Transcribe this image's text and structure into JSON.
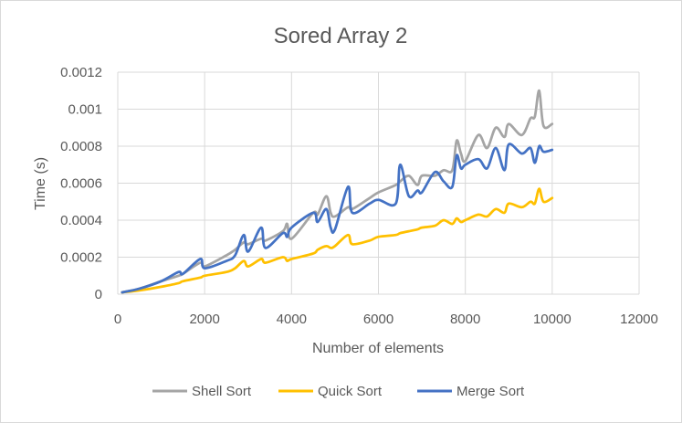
{
  "chart_data": {
    "type": "line",
    "title": "Sored Array 2",
    "xlabel": "Number of elements",
    "ylabel": "Time (s)",
    "xlim": [
      0,
      12000
    ],
    "ylim": [
      0,
      0.0012
    ],
    "x_ticks": [
      "0",
      "2000",
      "4000",
      "6000",
      "8000",
      "10000",
      "12000"
    ],
    "y_ticks": [
      "0",
      "0.0002",
      "0.0004",
      "0.0006",
      "0.0008",
      "0.001",
      "0.0012"
    ],
    "grid": "vertical-and-horizontal",
    "legend": "bottom",
    "colors": {
      "shell": "#a5a5a5",
      "quick": "#ffc000",
      "merge": "#4472c4",
      "grid": "#d9d9d9",
      "text": "#595959"
    },
    "x": [
      100,
      500,
      1000,
      1400,
      1500,
      1900,
      2000,
      2500,
      2700,
      2900,
      3000,
      3300,
      3400,
      3800,
      3900,
      4000,
      4500,
      4600,
      4800,
      4900,
      5000,
      5300,
      5400,
      5800,
      6000,
      6400,
      6500,
      6700,
      6900,
      7000,
      7300,
      7500,
      7700,
      7800,
      7900,
      8000,
      8300,
      8500,
      8700,
      8900,
      9000,
      9300,
      9500,
      9600,
      9700,
      9800,
      10000
    ],
    "series": [
      {
        "name": "Shell Sort",
        "values": [
          1e-05,
          3e-05,
          7e-05,
          0.0001,
          0.00011,
          0.00017,
          0.00015,
          0.00021,
          0.00024,
          0.00028,
          0.00027,
          0.0003,
          0.00029,
          0.00034,
          0.00038,
          0.0003,
          0.00044,
          0.00043,
          0.00053,
          0.00044,
          0.00042,
          0.00047,
          0.00046,
          0.00052,
          0.00055,
          0.00059,
          0.00061,
          0.00064,
          0.00059,
          0.00064,
          0.00064,
          0.00067,
          0.00067,
          0.00083,
          0.00076,
          0.00072,
          0.00086,
          0.00079,
          0.0009,
          0.00085,
          0.00092,
          0.00086,
          0.00095,
          0.00096,
          0.0011,
          0.00091,
          0.00092
        ]
      },
      {
        "name": "Quick Sort",
        "values": [
          1e-05,
          2e-05,
          4e-05,
          6e-05,
          7e-05,
          9e-05,
          0.0001,
          0.00012,
          0.00014,
          0.00018,
          0.00015,
          0.00019,
          0.00017,
          0.0002,
          0.00018,
          0.00019,
          0.00022,
          0.00024,
          0.00026,
          0.00025,
          0.00026,
          0.00032,
          0.00027,
          0.00029,
          0.00031,
          0.00032,
          0.00033,
          0.00034,
          0.00035,
          0.00036,
          0.00037,
          0.0004,
          0.00038,
          0.00041,
          0.00039,
          0.0004,
          0.00043,
          0.00042,
          0.00046,
          0.00044,
          0.00049,
          0.00047,
          0.0005,
          0.00049,
          0.00057,
          0.0005,
          0.00052
        ]
      },
      {
        "name": "Merge Sort",
        "values": [
          1e-05,
          3e-05,
          7e-05,
          0.00012,
          0.00011,
          0.00019,
          0.00014,
          0.00018,
          0.00021,
          0.00032,
          0.00023,
          0.00036,
          0.00025,
          0.00033,
          0.00031,
          0.00036,
          0.00044,
          0.00039,
          0.00046,
          0.00036,
          0.00035,
          0.00058,
          0.00044,
          0.00049,
          0.00051,
          0.00049,
          0.0007,
          0.00053,
          0.00056,
          0.00055,
          0.00066,
          0.00061,
          0.00058,
          0.00075,
          0.00068,
          0.0007,
          0.00073,
          0.00068,
          0.00079,
          0.00067,
          0.00081,
          0.00076,
          0.00079,
          0.00071,
          0.0008,
          0.00077,
          0.00078
        ]
      }
    ]
  }
}
